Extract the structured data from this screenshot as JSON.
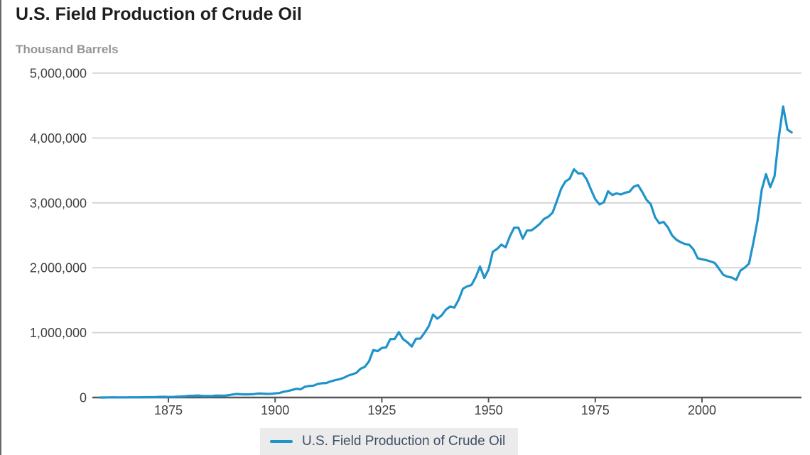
{
  "page": {
    "title": "U.S. Field Production of Crude Oil",
    "units_label": "Thousand Barrels"
  },
  "legend": {
    "items": [
      {
        "label": "U.S. Field Production of Crude Oil",
        "color": "#1f93cb"
      }
    ]
  },
  "colors": {
    "line": "#1f93cb",
    "grid": "#d4d4d4",
    "axis": "#55565a",
    "title_text": "#1f1f1f",
    "subtitle_text": "#949494",
    "tick_text": "#404040",
    "legend_bg": "#ebebeb",
    "legend_text": "#3f4f66"
  },
  "chart_data": {
    "type": "line",
    "title": "U.S. Field Production of Crude Oil",
    "xlabel": "",
    "ylabel": "Thousand Barrels",
    "xlim": [
      1859,
      2023
    ],
    "ylim": [
      0,
      5000000
    ],
    "grid": "horizontal",
    "legend_position": "bottom",
    "x_ticks": [
      1875,
      1900,
      1925,
      1950,
      1975,
      2000
    ],
    "y_ticks": [
      0,
      1000000,
      2000000,
      3000000,
      4000000,
      5000000
    ],
    "y_tick_labels": [
      "0",
      "1,000,000",
      "2,000,000",
      "3,000,000",
      "4,000,000",
      "5,000,000"
    ],
    "x_start_year": 1859,
    "x_end_year": 2021,
    "x_step": 1,
    "series": [
      {
        "name": "U.S. Field Production of Crude Oil",
        "color": "#1f93cb",
        "values": [
          2,
          500,
          2114,
          3057,
          2611,
          2116,
          2498,
          3598,
          3347,
          3646,
          4215,
          5261,
          5205,
          6293,
          9894,
          10927,
          8788,
          9133,
          13350,
          15397,
          19914,
          26286,
          27661,
          30350,
          23450,
          24218,
          21859,
          28065,
          28283,
          27612,
          35164,
          45824,
          54293,
          50515,
          48431,
          49344,
          52892,
          60960,
          60476,
          55364,
          57071,
          63621,
          69389,
          88767,
          100461,
          117081,
          134717,
          126494,
          166095,
          178527,
          183171,
          209557,
          220449,
          222935,
          248446,
          265763,
          281104,
          300767,
          335316,
          355928,
          378367,
          442929,
          472183,
          557531,
          732407,
          713940,
          763743,
          770874,
          901129,
          901474,
          1007323,
          898011,
          851081,
          785159,
          905656,
          908065,
          996596,
          1099687,
          1279160,
          1214355,
          1264962,
          1353214,
          1402228,
          1386645,
          1505613,
          1677904,
          1713655,
          1733590,
          1856987,
          2020185,
          1841940,
          1973574,
          2247711,
          2289836,
          2357082,
          2314988,
          2484428,
          2617283,
          2616901,
          2448987,
          2574590,
          2574933,
          2621758,
          2676189,
          2752723,
          2786822,
          2848514,
          3027763,
          3215742,
          3329042,
          3371751,
          3517450,
          3453914,
          3455368,
          3360903,
          3202585,
          3056779,
          2976180,
          3009265,
          3178216,
          3121310,
          3146365,
          3128624,
          3156715,
          3170999,
          3249696,
          3274553,
          3168252,
          3047378,
          2979123,
          2778773,
          2684687,
          2707039,
          2624632,
          2499033,
          2431476,
          2394268,
          2366017,
          2354831,
          2281919,
          2146732,
          2130707,
          2117511,
          2097124,
          2073453,
          1983302,
          1890106,
          1862259,
          1848450,
          1811817,
          1956596,
          2001234,
          2062193,
          2377710,
          2722566,
          3203310,
          3442210,
          3241510,
          3411219,
          4011283,
          4485635,
          4129563,
          4085889
        ]
      }
    ]
  }
}
